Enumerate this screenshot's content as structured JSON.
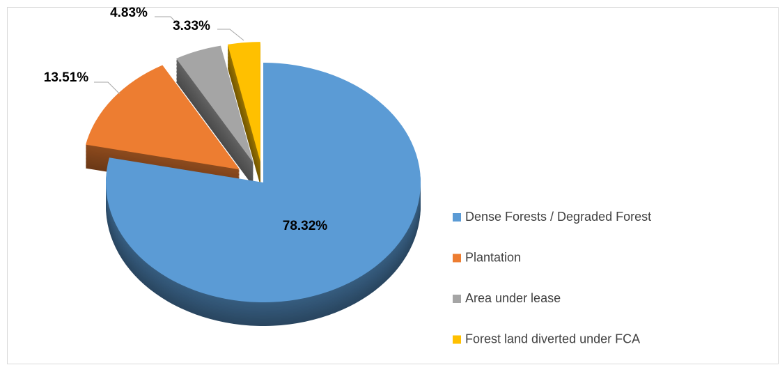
{
  "chart_data": {
    "type": "pie",
    "categories": [
      "Dense Forests / Degraded Forest",
      "Plantation",
      "Area under lease",
      "Forest land diverted under FCA"
    ],
    "values": [
      78.32,
      13.51,
      4.83,
      3.33
    ],
    "value_labels": [
      "78.32%",
      "13.51%",
      "4.83%",
      "3.33%"
    ],
    "colors": [
      "#5b9bd5",
      "#ed7d31",
      "#a5a5a5",
      "#ffc000"
    ],
    "legend": "right"
  }
}
